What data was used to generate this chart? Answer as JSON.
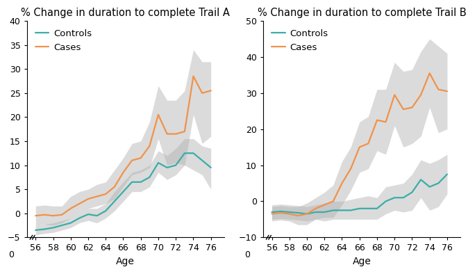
{
  "title_A": "% Change in duration to complete Trail A",
  "title_B": "% Change in duration to complete Trail B",
  "xlabel": "Age",
  "ages": [
    56,
    57,
    58,
    59,
    60,
    61,
    62,
    63,
    64,
    65,
    66,
    67,
    68,
    69,
    70,
    71,
    72,
    73,
    74,
    75,
    76
  ],
  "A_controls_mean": [
    -3.5,
    -3.3,
    -3.0,
    -2.5,
    -2.0,
    -1.0,
    -0.2,
    -0.5,
    0.5,
    2.5,
    4.5,
    6.5,
    6.5,
    7.5,
    10.5,
    9.5,
    10.0,
    12.5,
    12.5,
    11.0,
    9.5
  ],
  "A_controls_low": [
    -4.5,
    -4.2,
    -4.0,
    -3.5,
    -3.0,
    -2.0,
    -1.5,
    -2.0,
    -1.0,
    0.5,
    2.5,
    4.5,
    4.5,
    5.5,
    8.5,
    7.0,
    8.0,
    10.0,
    9.0,
    8.0,
    5.0
  ],
  "A_controls_high": [
    -2.5,
    -2.3,
    -2.0,
    -1.5,
    -1.0,
    0.0,
    1.0,
    1.0,
    2.0,
    4.5,
    6.5,
    8.5,
    9.0,
    10.0,
    13.0,
    12.0,
    13.5,
    15.5,
    15.5,
    14.0,
    13.5
  ],
  "A_cases_mean": [
    -0.5,
    -0.3,
    -0.5,
    -0.3,
    1.0,
    2.0,
    3.0,
    3.5,
    4.0,
    5.5,
    8.5,
    11.0,
    11.5,
    14.0,
    20.5,
    16.5,
    16.5,
    17.0,
    28.5,
    25.0,
    25.5
  ],
  "A_cases_low": [
    -2.5,
    -2.3,
    -2.5,
    -2.0,
    -1.0,
    0.0,
    1.0,
    1.5,
    2.0,
    3.0,
    5.5,
    8.0,
    8.5,
    9.5,
    15.5,
    10.0,
    10.5,
    10.0,
    20.5,
    14.5,
    16.0
  ],
  "A_cases_high": [
    1.5,
    1.7,
    1.5,
    1.5,
    3.5,
    4.5,
    5.0,
    6.0,
    6.5,
    9.0,
    11.5,
    14.5,
    15.0,
    19.0,
    26.5,
    23.5,
    23.5,
    25.5,
    34.0,
    31.5,
    31.5
  ],
  "A_ylim": [
    -5,
    40
  ],
  "A_yticks": [
    -5,
    0,
    5,
    10,
    15,
    20,
    25,
    30,
    35,
    40
  ],
  "B_controls_mean": [
    -3.0,
    -2.8,
    -3.0,
    -3.2,
    -3.5,
    -3.0,
    -3.0,
    -2.5,
    -2.5,
    -2.5,
    -2.0,
    -2.0,
    -2.0,
    0.0,
    1.0,
    1.0,
    2.5,
    6.0,
    4.0,
    5.0,
    7.5
  ],
  "B_controls_low": [
    -5.0,
    -4.8,
    -5.0,
    -5.2,
    -5.5,
    -5.0,
    -5.5,
    -5.0,
    -5.0,
    -5.0,
    -5.0,
    -5.0,
    -5.0,
    -3.5,
    -2.5,
    -3.0,
    -2.5,
    1.0,
    -2.5,
    -1.5,
    2.0
  ],
  "B_controls_high": [
    -1.0,
    -0.8,
    -1.0,
    -1.2,
    -1.5,
    -1.0,
    -0.5,
    0.0,
    0.0,
    0.5,
    1.0,
    1.5,
    1.0,
    4.0,
    4.5,
    5.0,
    7.5,
    11.5,
    10.5,
    11.5,
    13.0
  ],
  "B_cases_mean": [
    -3.5,
    -3.2,
    -3.5,
    -4.0,
    -3.5,
    -2.0,
    -1.0,
    0.0,
    5.0,
    9.0,
    15.0,
    16.0,
    22.5,
    22.0,
    29.5,
    25.5,
    26.0,
    29.5,
    35.5,
    31.0,
    30.5
  ],
  "B_cases_low": [
    -5.5,
    -5.2,
    -5.5,
    -6.5,
    -6.5,
    -5.0,
    -4.5,
    -4.5,
    -1.0,
    3.0,
    8.0,
    9.0,
    14.0,
    13.0,
    21.0,
    15.0,
    16.0,
    18.0,
    26.0,
    19.0,
    20.0
  ],
  "B_cases_high": [
    -1.5,
    -1.2,
    -1.5,
    -1.5,
    -0.5,
    1.0,
    2.5,
    4.5,
    11.0,
    15.0,
    22.0,
    23.5,
    31.0,
    31.0,
    38.5,
    36.0,
    36.5,
    41.5,
    45.0,
    43.0,
    41.0
  ],
  "B_ylim": [
    -10,
    50
  ],
  "B_yticks": [
    -10,
    0,
    10,
    20,
    30,
    40,
    50
  ],
  "color_controls": "#3aada8",
  "color_cases": "#f0924a",
  "color_band": "#b0b0b0",
  "background_color": "#ffffff",
  "linewidth": 1.6,
  "alpha_band": 0.45,
  "title_fontsize": 10.5,
  "label_fontsize": 10,
  "tick_fontsize": 9,
  "legend_fontsize": 9.5
}
